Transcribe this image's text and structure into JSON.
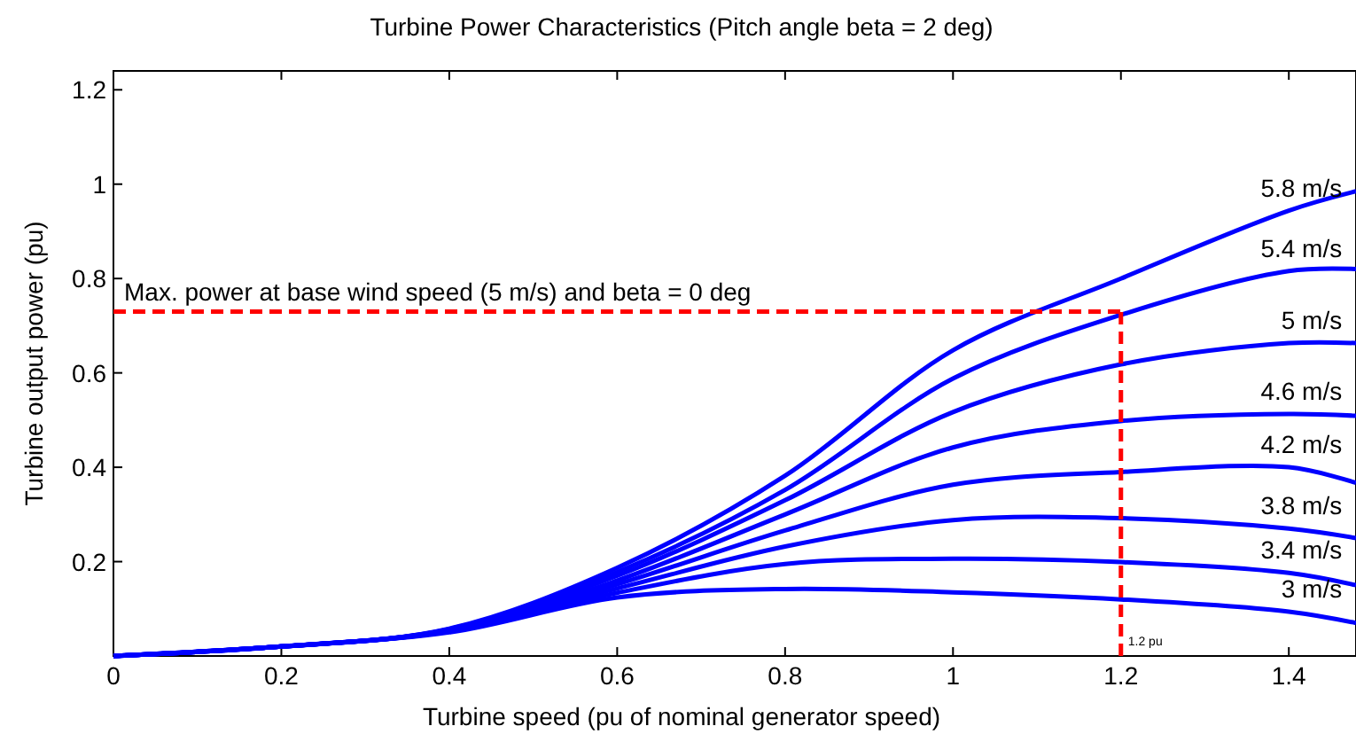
{
  "chart_data": {
    "type": "line",
    "title": "Turbine Power Characteristics (Pitch angle beta = 2 deg)",
    "xlabel": "Turbine speed (pu of nominal generator speed)",
    "ylabel": "Turbine output power (pu)",
    "x": [
      0,
      0.2,
      0.4,
      0.6,
      0.8,
      1.0,
      1.2,
      1.4,
      1.48
    ],
    "series": [
      {
        "name": "5.8 m/s",
        "color": "#0000ff",
        "values": [
          0,
          0.02,
          0.058,
          0.187,
          0.382,
          0.648,
          0.8,
          0.944,
          0.985
        ]
      },
      {
        "name": "5.4 m/s",
        "color": "#0000ff",
        "values": [
          0,
          0.02,
          0.057,
          0.178,
          0.352,
          0.588,
          0.723,
          0.816,
          0.82
        ]
      },
      {
        "name": "5 m/s",
        "color": "#0000ff",
        "values": [
          0,
          0.02,
          0.056,
          0.17,
          0.33,
          0.517,
          0.618,
          0.663,
          0.663
        ]
      },
      {
        "name": "4.6 m/s",
        "color": "#0000ff",
        "values": [
          0,
          0.02,
          0.055,
          0.16,
          0.3,
          0.442,
          0.498,
          0.513,
          0.509
        ]
      },
      {
        "name": "4.2 m/s",
        "color": "#0000ff",
        "values": [
          0,
          0.02,
          0.054,
          0.152,
          0.266,
          0.363,
          0.39,
          0.4,
          0.367
        ]
      },
      {
        "name": "3.8 m/s",
        "color": "#0000ff",
        "values": [
          0,
          0.02,
          0.053,
          0.143,
          0.232,
          0.288,
          0.292,
          0.27,
          0.25
        ]
      },
      {
        "name": "3.4 m/s",
        "color": "#0000ff",
        "values": [
          0,
          0.02,
          0.052,
          0.134,
          0.195,
          0.206,
          0.199,
          0.176,
          0.15
        ]
      },
      {
        "name": "3 m/s",
        "color": "#0000ff",
        "values": [
          0,
          0.02,
          0.05,
          0.124,
          0.142,
          0.135,
          0.12,
          0.094,
          0.07
        ]
      }
    ],
    "ref_lines": [
      {
        "axis": "y",
        "value": 0.73,
        "color": "#ff0000",
        "line_style": "dashed"
      },
      {
        "axis": "x",
        "value": 1.2,
        "color": "#ff0000",
        "line_style": "dashed"
      }
    ],
    "annotations": [
      {
        "text": "Max. power at base wind speed (5 m/s) and beta = 0 deg",
        "x": 0,
        "y": 0.73
      },
      {
        "text": "1.2 pu",
        "x": 1.2,
        "y": 0
      }
    ],
    "xlim": [
      0,
      1.48
    ],
    "ylim": [
      0,
      1.24
    ],
    "xticks": [
      0,
      0.2,
      0.4,
      0.6,
      0.8,
      1,
      1.2,
      1.4
    ],
    "yticks": [
      {
        "value": 0,
        "label": null
      },
      0.2,
      0.4,
      0.6,
      0.8,
      1,
      1.2
    ],
    "grid": false,
    "marker": "none",
    "line_style": "solid"
  }
}
